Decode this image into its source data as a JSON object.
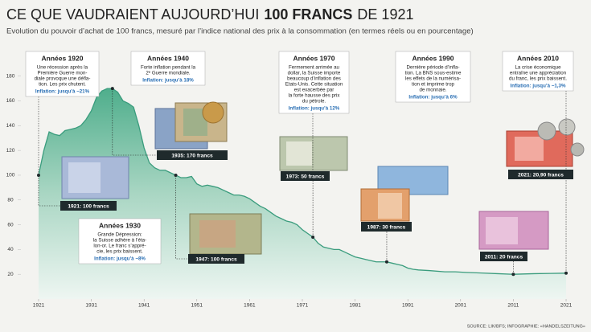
{
  "chart_data": {
    "type": "area",
    "title": [
      "CE QUE VAUDRAIENT AUJOURD’HUI",
      "100 FRANCS",
      "DE 1921"
    ],
    "subtitle": "Evolution du pouvoir d’achat de 100 francs, mesuré par l’indice national des prix à la consommation (en termes réels ou en pourcentage)",
    "source": "SOURCE: LIK/BFS; INFOGRAPHIE: «HANDELSZEITUNG»",
    "color": "#3a9c7d",
    "x": [
      1921,
      1922,
      1923,
      1924,
      1925,
      1926,
      1927,
      1928,
      1929,
      1930,
      1931,
      1932,
      1933,
      1934,
      1935,
      1936,
      1937,
      1938,
      1939,
      1940,
      1941,
      1942,
      1943,
      1944,
      1945,
      1946,
      1947,
      1948,
      1949,
      1950,
      1951,
      1952,
      1953,
      1954,
      1955,
      1956,
      1957,
      1958,
      1959,
      1960,
      1961,
      1962,
      1963,
      1964,
      1965,
      1966,
      1967,
      1968,
      1969,
      1970,
      1971,
      1972,
      1973,
      1974,
      1975,
      1976,
      1977,
      1978,
      1979,
      1980,
      1981,
      1982,
      1983,
      1984,
      1985,
      1986,
      1987,
      1988,
      1989,
      1990,
      1991,
      1992,
      1993,
      1995,
      1998,
      2000,
      2002,
      2005,
      2008,
      2011,
      2015,
      2018,
      2021
    ],
    "values": [
      100,
      120,
      135,
      133,
      132,
      136,
      137,
      138,
      140,
      145,
      152,
      163,
      168,
      170,
      170,
      167,
      160,
      158,
      155,
      140,
      122,
      110,
      106,
      104,
      104,
      102,
      100,
      98,
      98,
      99,
      93,
      91,
      92,
      91,
      90,
      88,
      86,
      84,
      84,
      83,
      81,
      78,
      75,
      73,
      70,
      67,
      65,
      63,
      62,
      60,
      56,
      53,
      50,
      45,
      42,
      41,
      40,
      40,
      38,
      36,
      34,
      33,
      32,
      31,
      30,
      30,
      30,
      29,
      28,
      27,
      25,
      24,
      23.5,
      23,
      22,
      22,
      21.5,
      21,
      20.5,
      20,
      20.5,
      20.7,
      20.9
    ],
    "xlim": [
      1918,
      2024
    ],
    "xticks": [
      1921,
      1931,
      1941,
      1951,
      1961,
      1971,
      1981,
      1991,
      2001,
      2011,
      2021
    ],
    "ylim": [
      0,
      185
    ],
    "yticks": [
      20,
      40,
      60,
      80,
      100,
      120,
      140,
      160,
      180
    ],
    "markers": [
      {
        "x": 1921,
        "value": 100,
        "label": "1921: 100 francs"
      },
      {
        "x": 1935,
        "value": 170,
        "label": "1935: 170 francs"
      },
      {
        "x": 1947,
        "value": 100,
        "label": "1947: 100 francs"
      },
      {
        "x": 1973,
        "value": 50,
        "label": "1973: 50 francs"
      },
      {
        "x": 1987,
        "value": 30,
        "label": "1987: 30 francs"
      },
      {
        "x": 2011,
        "value": 20,
        "label": "2011: 20 francs"
      },
      {
        "x": 2021,
        "value": 20.9,
        "label": "2021: 20,90 francs"
      }
    ],
    "periods": [
      {
        "title": "Années 1920",
        "lines": [
          "Une récession après la",
          "Première Guerre mon-",
          "diale provoque une défla-",
          "tion. Les prix chutent."
        ],
        "inflation": "Inflation: jusqu’à −21%"
      },
      {
        "title": "Années 1940",
        "lines": [
          "Forte inflation pendant la",
          "2ᵉ Guerre mondiale."
        ],
        "inflation": "Inflation: jusqu’à 18%"
      },
      {
        "title": "Années 1930",
        "lines": [
          "Grande Dépression:",
          "la Suisse adhère à l’éta-",
          "lon-or. Le franc s’appré-",
          "cie, les prix baissent."
        ],
        "inflation": "Inflation: jusqu’à −8%"
      },
      {
        "title": "Années 1970",
        "lines": [
          "Fermement arrimée au",
          "dollar, la Suisse importe",
          "beaucoup d’inflation des",
          "Etats-Unis. Cette situation",
          "est exacerbée par",
          "la forte hausse des prix",
          "du pétrole."
        ],
        "inflation": "Inflation: jusqu’à 12%"
      },
      {
        "title": "Années 1990",
        "lines": [
          "Dernière période d’infla-",
          "tion. La BNS sous-estime",
          "les effets de la numérisa-",
          "tion et imprime trop",
          "de monnaie."
        ],
        "inflation": "Inflation: jusqu’à 6%"
      },
      {
        "title": "Années 2010",
        "lines": [
          "La crise économique",
          "entraîne une appréciation",
          "du franc, les prix baissent."
        ],
        "inflation": "Inflation: jusqu’à −1,3%"
      }
    ]
  }
}
